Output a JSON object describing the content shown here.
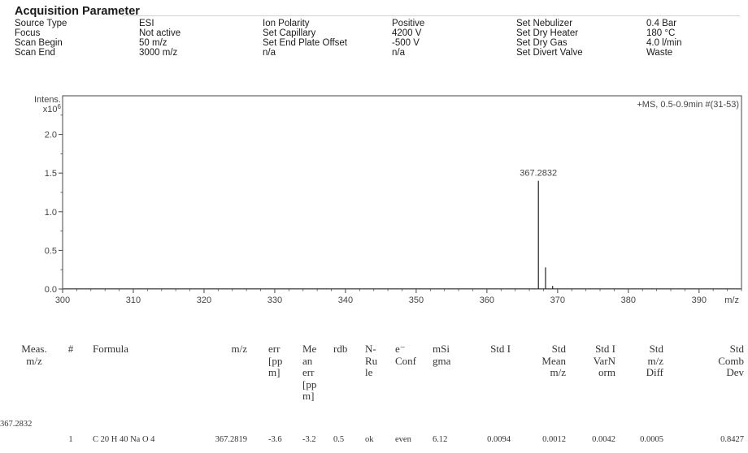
{
  "header": {
    "title": "Acquisition Parameter",
    "params": [
      {
        "label": "Source Type",
        "value": "ESI"
      },
      {
        "label": "Focus",
        "value": "Not active"
      },
      {
        "label": "Scan Begin",
        "value": "50 m/z"
      },
      {
        "label": "Scan End",
        "value": "3000 m/z"
      },
      {
        "label": "Ion Polarity",
        "value": "Positive"
      },
      {
        "label": "Set Capillary",
        "value": "4200 V"
      },
      {
        "label": "Set End Plate Offset",
        "value": "-500 V"
      },
      {
        "label": "n/a",
        "value": "n/a"
      },
      {
        "label": "Set Nebulizer",
        "value": "0.4 Bar"
      },
      {
        "label": "Set Dry Heater",
        "value": "180 °C"
      },
      {
        "label": "Set Dry Gas",
        "value": "4.0 l/min"
      },
      {
        "label": "Set Divert Valve",
        "value": "Waste"
      }
    ]
  },
  "chart_data": {
    "type": "line",
    "title": "+MS, 0.5-0.9min #(31-53)",
    "ylabel_line1": "Intens.",
    "ylabel_line2": "x10^6",
    "xlabel": "m/z",
    "xlim": [
      300,
      396
    ],
    "ylim": [
      0,
      2.5
    ],
    "x_ticks": [
      300,
      310,
      320,
      330,
      340,
      350,
      360,
      370,
      380,
      390
    ],
    "x_tick_labels": [
      "300",
      "310",
      "320",
      "330",
      "340",
      "350",
      "360",
      "370",
      "380",
      "390"
    ],
    "y_ticks": [
      0.0,
      0.5,
      1.0,
      1.5,
      2.0
    ],
    "y_tick_labels": [
      "0.0",
      "0.5",
      "1.0",
      "1.5",
      "2.0"
    ],
    "grid": false,
    "series": [
      {
        "peaks": [
          {
            "x": 367.2832,
            "y": 1.4,
            "label": "367.2832"
          },
          {
            "x": 368.29,
            "y": 0.28,
            "label": ""
          },
          {
            "x": 369.29,
            "y": 0.04,
            "label": ""
          }
        ]
      }
    ]
  },
  "table": {
    "columns": [
      {
        "lines": [
          "Meas.",
          "m/z"
        ]
      },
      {
        "lines": [
          "#"
        ]
      },
      {
        "lines": [
          "Formula"
        ]
      },
      {
        "lines": [
          "m/z"
        ]
      },
      {
        "lines": [
          "err",
          "[pp",
          "m]"
        ]
      },
      {
        "lines": [
          "Me",
          "an",
          "err",
          "[pp",
          "m]"
        ]
      },
      {
        "lines": [
          "rdb"
        ]
      },
      {
        "lines": [
          "N-",
          "Ru",
          "le"
        ]
      },
      {
        "lines": [
          "e⁻",
          "Conf"
        ]
      },
      {
        "lines": [
          "mSi",
          "gma"
        ]
      },
      {
        "lines": [
          "Std I"
        ]
      },
      {
        "lines": [
          "Std",
          "Mean",
          "m/z"
        ]
      },
      {
        "lines": [
          "Std I",
          "VarN",
          "orm"
        ]
      },
      {
        "lines": [
          "Std",
          "m/z",
          "Diff"
        ]
      },
      {
        "lines": [
          "Std",
          "Comb",
          "Dev"
        ]
      }
    ],
    "meas_mz": "367.2832",
    "rows": [
      [
        "1",
        "C 20 H 40 Na O 4",
        "367.2819",
        "-3.6",
        "-3.2",
        "0.5",
        "ok",
        "even",
        "6.12",
        "0.0094",
        "0.0012",
        "0.0042",
        "0.0005",
        "0.8427"
      ]
    ]
  }
}
